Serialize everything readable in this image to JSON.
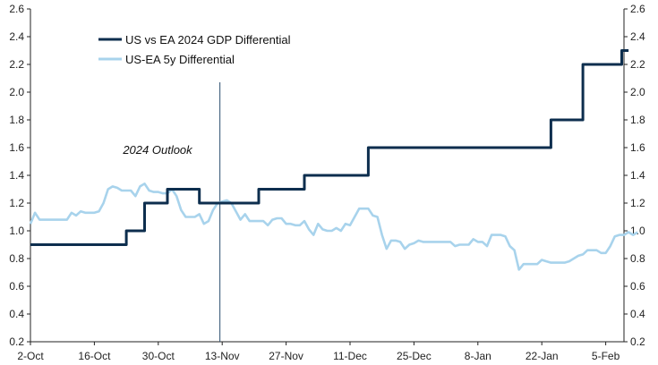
{
  "chart_data": {
    "type": "line",
    "title": "",
    "xlabel": "",
    "ylabel": "",
    "ylim": [
      0.2,
      2.6
    ],
    "y_ticks": [
      "0.2",
      "0.4",
      "0.6",
      "0.8",
      "1.0",
      "1.2",
      "1.4",
      "1.6",
      "1.8",
      "2.0",
      "2.2",
      "2.4",
      "2.6"
    ],
    "y_tick_values": [
      0.2,
      0.4,
      0.6,
      0.8,
      1.0,
      1.2,
      1.4,
      1.6,
      1.8,
      2.0,
      2.2,
      2.4,
      2.6
    ],
    "secondary_y_axis": true,
    "x_tick_labels": [
      "2-Oct",
      "16-Oct",
      "30-Oct",
      "13-Nov",
      "27-Nov",
      "11-Dec",
      "25-Dec",
      "8-Jan",
      "22-Jan",
      "5-Feb"
    ],
    "x_range_days": [
      0,
      130
    ],
    "legend_position": "top-left",
    "grid": false,
    "annotations": [
      {
        "text": "2024 Outlook",
        "x_day": 41.5
      }
    ],
    "series": [
      {
        "name": "US vs EA 2024 GDP Differential",
        "color": "#0d2e4e",
        "style": "step",
        "points": [
          [
            0,
            0.9
          ],
          [
            21,
            0.9
          ],
          [
            21,
            1.0
          ],
          [
            25,
            1.0
          ],
          [
            25,
            1.2
          ],
          [
            30,
            1.2
          ],
          [
            30,
            1.3
          ],
          [
            37,
            1.3
          ],
          [
            37,
            1.2
          ],
          [
            50,
            1.2
          ],
          [
            50,
            1.3
          ],
          [
            60,
            1.3
          ],
          [
            60,
            1.4
          ],
          [
            74,
            1.4
          ],
          [
            74,
            1.6
          ],
          [
            114,
            1.6
          ],
          [
            114,
            1.8
          ],
          [
            121,
            1.8
          ],
          [
            121,
            2.2
          ],
          [
            129.5,
            2.2
          ],
          [
            129.5,
            2.3
          ],
          [
            131,
            2.3
          ]
        ]
      },
      {
        "name": "US-EA 5y Differential",
        "color": "#a8d3ec",
        "style": "line",
        "points": [
          [
            0,
            1.05
          ],
          [
            1,
            1.13
          ],
          [
            2,
            1.08
          ],
          [
            3,
            1.08
          ],
          [
            4,
            1.08
          ],
          [
            5,
            1.08
          ],
          [
            6,
            1.08
          ],
          [
            7,
            1.08
          ],
          [
            8,
            1.08
          ],
          [
            9,
            1.13
          ],
          [
            10,
            1.11
          ],
          [
            11,
            1.14
          ],
          [
            12,
            1.13
          ],
          [
            13,
            1.13
          ],
          [
            14,
            1.13
          ],
          [
            15,
            1.14
          ],
          [
            16,
            1.2
          ],
          [
            17,
            1.3
          ],
          [
            18,
            1.32
          ],
          [
            19,
            1.31
          ],
          [
            20,
            1.29
          ],
          [
            21,
            1.29
          ],
          [
            22,
            1.29
          ],
          [
            23,
            1.25
          ],
          [
            24,
            1.32
          ],
          [
            25,
            1.34
          ],
          [
            26,
            1.29
          ],
          [
            27,
            1.28
          ],
          [
            28,
            1.28
          ],
          [
            29,
            1.27
          ],
          [
            30,
            1.27
          ],
          [
            31,
            1.3
          ],
          [
            32,
            1.25
          ],
          [
            33,
            1.15
          ],
          [
            34,
            1.1
          ],
          [
            35,
            1.1
          ],
          [
            36,
            1.1
          ],
          [
            37,
            1.12
          ],
          [
            38,
            1.05
          ],
          [
            39,
            1.07
          ],
          [
            40,
            1.15
          ],
          [
            41,
            1.2
          ],
          [
            42,
            1.21
          ],
          [
            43,
            1.22
          ],
          [
            44,
            1.2
          ],
          [
            45,
            1.14
          ],
          [
            46,
            1.08
          ],
          [
            47,
            1.12
          ],
          [
            48,
            1.07
          ],
          [
            49,
            1.07
          ],
          [
            50,
            1.07
          ],
          [
            51,
            1.07
          ],
          [
            52,
            1.04
          ],
          [
            53,
            1.08
          ],
          [
            54,
            1.09
          ],
          [
            55,
            1.09
          ],
          [
            56,
            1.05
          ],
          [
            57,
            1.05
          ],
          [
            58,
            1.04
          ],
          [
            59,
            1.04
          ],
          [
            60,
            1.07
          ],
          [
            61,
            1.01
          ],
          [
            62,
            0.97
          ],
          [
            63,
            1.05
          ],
          [
            64,
            1.01
          ],
          [
            65,
            1.0
          ],
          [
            66,
            1.0
          ],
          [
            67,
            1.02
          ],
          [
            68,
            1.0
          ],
          [
            69,
            1.05
          ],
          [
            70,
            1.04
          ],
          [
            71,
            1.1
          ],
          [
            72,
            1.16
          ],
          [
            73,
            1.16
          ],
          [
            74,
            1.16
          ],
          [
            75,
            1.11
          ],
          [
            76,
            1.1
          ],
          [
            77,
            0.97
          ],
          [
            78,
            0.87
          ],
          [
            79,
            0.93
          ],
          [
            80,
            0.93
          ],
          [
            81,
            0.92
          ],
          [
            82,
            0.87
          ],
          [
            83,
            0.9
          ],
          [
            84,
            0.91
          ],
          [
            85,
            0.93
          ],
          [
            86,
            0.92
          ],
          [
            87,
            0.92
          ],
          [
            88,
            0.92
          ],
          [
            89,
            0.92
          ],
          [
            90,
            0.92
          ],
          [
            91,
            0.92
          ],
          [
            92,
            0.92
          ],
          [
            93,
            0.89
          ],
          [
            94,
            0.9
          ],
          [
            95,
            0.9
          ],
          [
            96,
            0.9
          ],
          [
            97,
            0.94
          ],
          [
            98,
            0.92
          ],
          [
            99,
            0.92
          ],
          [
            100,
            0.89
          ],
          [
            101,
            0.97
          ],
          [
            102,
            0.97
          ],
          [
            103,
            0.97
          ],
          [
            104,
            0.96
          ],
          [
            105,
            0.89
          ],
          [
            106,
            0.86
          ],
          [
            107,
            0.72
          ],
          [
            108,
            0.76
          ],
          [
            109,
            0.76
          ],
          [
            110,
            0.76
          ],
          [
            111,
            0.76
          ],
          [
            112,
            0.79
          ],
          [
            113,
            0.78
          ],
          [
            114,
            0.77
          ],
          [
            115,
            0.77
          ],
          [
            116,
            0.77
          ],
          [
            117,
            0.77
          ],
          [
            118,
            0.78
          ],
          [
            119,
            0.8
          ],
          [
            120,
            0.82
          ],
          [
            121,
            0.83
          ],
          [
            122,
            0.86
          ],
          [
            123,
            0.86
          ],
          [
            124,
            0.86
          ],
          [
            125,
            0.84
          ],
          [
            126,
            0.84
          ],
          [
            127,
            0.89
          ],
          [
            128,
            0.96
          ],
          [
            129,
            0.97
          ],
          [
            130,
            0.97
          ],
          [
            131,
            0.99
          ],
          [
            132,
            0.97
          ],
          [
            133,
            0.99
          ]
        ]
      }
    ]
  }
}
